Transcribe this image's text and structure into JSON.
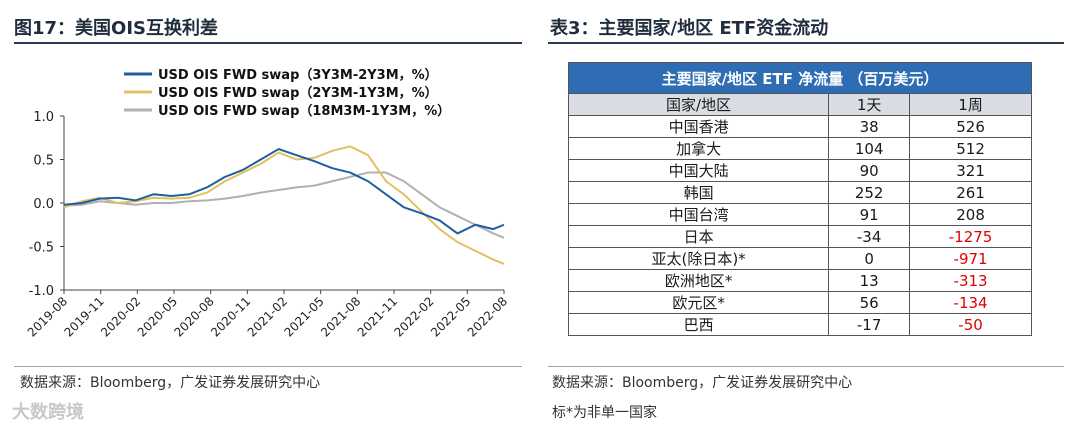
{
  "left": {
    "title": "图17：美国OIS互换利差",
    "source": "数据来源：Bloomberg，广发证券发展研究中心"
  },
  "right": {
    "title": "表3：主要国家/地区 ETF资金流动",
    "source": "数据来源：Bloomberg，广发证券发展研究中心",
    "note": "标*为非单一国家",
    "table": {
      "caption": "主要国家/地区 ETF 净流量 （百万美元）",
      "headers": [
        "国家/地区",
        "1天",
        "1周"
      ],
      "rows": [
        {
          "region": "中国香港",
          "day": "38",
          "week": "526"
        },
        {
          "region": "加拿大",
          "day": "104",
          "week": "512"
        },
        {
          "region": "中国大陆",
          "day": "90",
          "week": "321"
        },
        {
          "region": "韩国",
          "day": "252",
          "week": "261"
        },
        {
          "region": "中国台湾",
          "day": "91",
          "week": "208"
        },
        {
          "region": "日本",
          "day": "-34",
          "week": "-1275"
        },
        {
          "region": "亚太(除日本)*",
          "day": "0",
          "week": "-971"
        },
        {
          "region": "欧洲地区*",
          "day": "13",
          "week": "-313"
        },
        {
          "region": "欧元区*",
          "day": "56",
          "week": "-134"
        },
        {
          "region": "巴西",
          "day": "-17",
          "week": "-50"
        }
      ]
    }
  },
  "watermark": "大数跨境",
  "colors": {
    "accent": "#2e6db4",
    "negative": "#e00000",
    "rule": "#2b3a55"
  },
  "chart_data": {
    "type": "line",
    "title": "",
    "xlabel": "",
    "ylabel": "",
    "ylim": [
      -1.0,
      1.0
    ],
    "yticks": [
      "1.0",
      "0.5",
      "0.0",
      "-0.5",
      "-1.0"
    ],
    "x_tick_labels": [
      "2019-08",
      "2019-11",
      "2020-02",
      "2020-05",
      "2020-08",
      "2020-11",
      "2021-02",
      "2021-05",
      "2021-08",
      "2021-11",
      "2022-02",
      "2022-05",
      "2022-08"
    ],
    "x": [
      0,
      0.5,
      1,
      1.5,
      2,
      2.5,
      3,
      3.5,
      4,
      4.5,
      5,
      5.5,
      6,
      6.5,
      7,
      7.5,
      8,
      8.5,
      9,
      9.5,
      10,
      10.5,
      11,
      11.5,
      12,
      12.3
    ],
    "series": [
      {
        "name": "USD OIS FWD swap（3Y3M-2Y3M，%）",
        "color": "#1f5fa0",
        "values": [
          -0.02,
          0.0,
          0.05,
          0.06,
          0.03,
          0.1,
          0.08,
          0.1,
          0.18,
          0.3,
          0.38,
          0.5,
          0.62,
          0.55,
          0.48,
          0.4,
          0.35,
          0.25,
          0.1,
          -0.05,
          -0.12,
          -0.2,
          -0.35,
          -0.25,
          -0.3,
          -0.25
        ]
      },
      {
        "name": "USD OIS FWD swap（2Y3M-1Y3M，%）",
        "color": "#e2c060",
        "values": [
          -0.05,
          0.02,
          0.06,
          0.0,
          0.02,
          0.06,
          0.05,
          0.06,
          0.12,
          0.25,
          0.35,
          0.45,
          0.58,
          0.5,
          0.52,
          0.6,
          0.65,
          0.55,
          0.25,
          0.1,
          -0.1,
          -0.3,
          -0.45,
          -0.55,
          -0.65,
          -0.7
        ]
      },
      {
        "name": "USD OIS FWD swap（18M3M-1Y3M，%）",
        "color": "#b0b0b0",
        "values": [
          -0.03,
          -0.02,
          0.02,
          0.0,
          -0.02,
          0.0,
          0.0,
          0.02,
          0.03,
          0.05,
          0.08,
          0.12,
          0.15,
          0.18,
          0.2,
          0.25,
          0.3,
          0.35,
          0.35,
          0.25,
          0.1,
          -0.05,
          -0.15,
          -0.25,
          -0.35,
          -0.4
        ]
      }
    ]
  }
}
